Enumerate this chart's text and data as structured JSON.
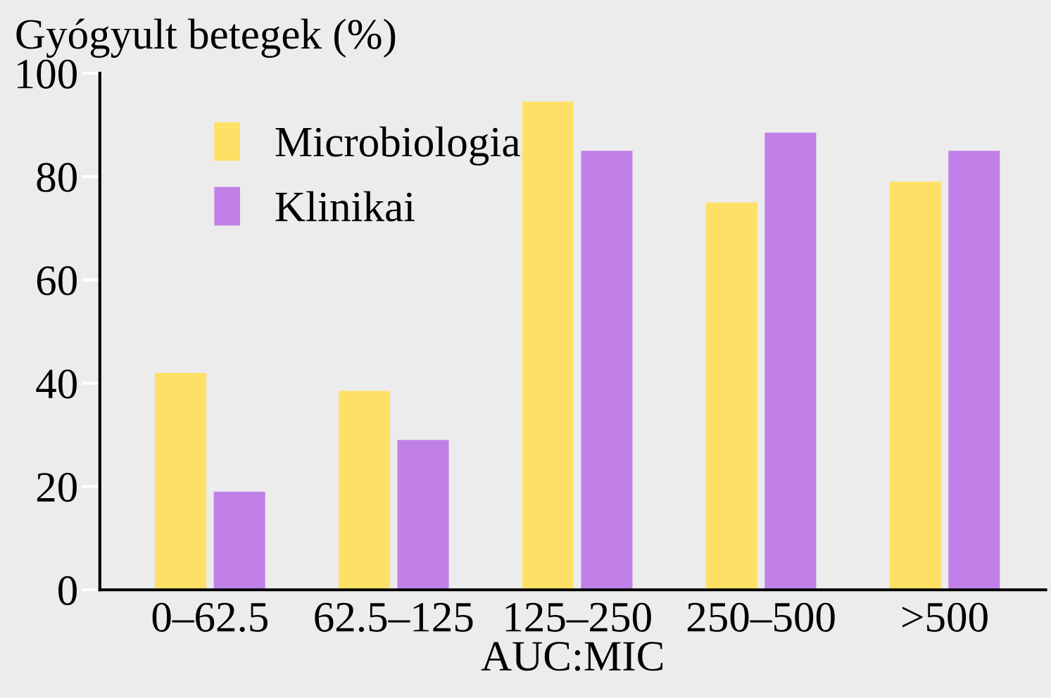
{
  "chart_data": {
    "type": "bar",
    "ylabel": "Gyógyult betegek (%)",
    "xlabel": "AUC:MIC",
    "categories": [
      "0–62.5",
      "62.5–125",
      "125–250",
      "250–500",
      ">500"
    ],
    "series": [
      {
        "name": "Microbiologia",
        "color": "#ffe066",
        "values": [
          42,
          38.5,
          94.5,
          75,
          79
        ]
      },
      {
        "name": "Klinikai",
        "color": "#c080e8",
        "values": [
          19,
          29,
          85,
          88.5,
          85
        ]
      }
    ],
    "ylim": [
      0,
      100
    ],
    "yticks": [
      0,
      20,
      40,
      60,
      80,
      100
    ],
    "grid": false,
    "legend": "top left"
  }
}
